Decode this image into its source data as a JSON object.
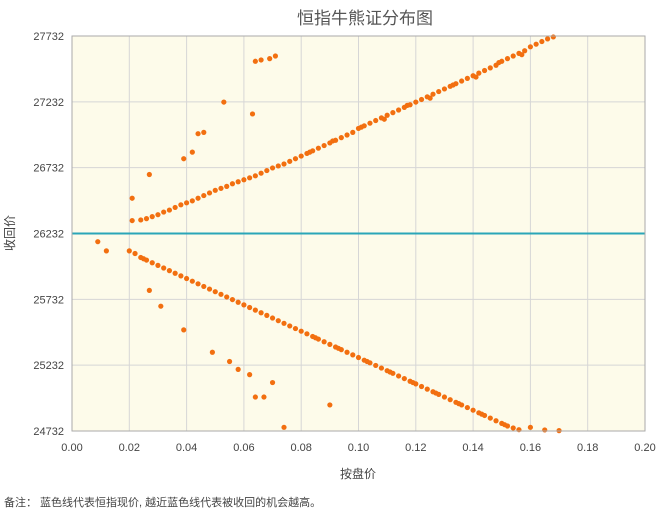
{
  "chart_data": {
    "type": "scatter",
    "title": "恒指牛熊证分布图",
    "xlabel": "按盘价",
    "ylabel": "收回价",
    "xlim": [
      0,
      0.2
    ],
    "ylim": [
      24732,
      27732
    ],
    "x_ticks": [
      "0.00",
      "0.02",
      "0.04",
      "0.06",
      "0.08",
      "0.10",
      "0.12",
      "0.14",
      "0.16",
      "0.18",
      "0.20"
    ],
    "y_ticks": [
      "24732",
      "25232",
      "25732",
      "26232",
      "26732",
      "27232",
      "27732"
    ],
    "grid": true,
    "reference_line": {
      "y": 26232,
      "color": "#2aa6b8"
    },
    "point_color": "#f26f10",
    "background_color": "#fdfbea",
    "series": [
      {
        "name": "",
        "points": [
          [
            0.021,
            26330
          ],
          [
            0.024,
            26335
          ],
          [
            0.026,
            26345
          ],
          [
            0.028,
            26360
          ],
          [
            0.03,
            26375
          ],
          [
            0.032,
            26395
          ],
          [
            0.034,
            26410
          ],
          [
            0.036,
            26430
          ],
          [
            0.038,
            26450
          ],
          [
            0.04,
            26465
          ],
          [
            0.042,
            26480
          ],
          [
            0.044,
            26500
          ],
          [
            0.046,
            26520
          ],
          [
            0.048,
            26540
          ],
          [
            0.05,
            26560
          ],
          [
            0.052,
            26575
          ],
          [
            0.054,
            26590
          ],
          [
            0.056,
            26610
          ],
          [
            0.058,
            26625
          ],
          [
            0.06,
            26640
          ],
          [
            0.062,
            26655
          ],
          [
            0.064,
            26670
          ],
          [
            0.066,
            26690
          ],
          [
            0.068,
            26710
          ],
          [
            0.07,
            26730
          ],
          [
            0.072,
            26745
          ],
          [
            0.074,
            26760
          ],
          [
            0.076,
            26780
          ],
          [
            0.078,
            26800
          ],
          [
            0.08,
            26820
          ],
          [
            0.082,
            26840
          ],
          [
            0.084,
            26860
          ],
          [
            0.086,
            26880
          ],
          [
            0.088,
            26900
          ],
          [
            0.09,
            26920
          ],
          [
            0.092,
            26940
          ],
          [
            0.094,
            26960
          ],
          [
            0.096,
            26980
          ],
          [
            0.098,
            27000
          ],
          [
            0.1,
            27030
          ],
          [
            0.102,
            27050
          ],
          [
            0.104,
            27070
          ],
          [
            0.106,
            27090
          ],
          [
            0.108,
            27110
          ],
          [
            0.11,
            27130
          ],
          [
            0.112,
            27150
          ],
          [
            0.114,
            27170
          ],
          [
            0.116,
            27190
          ],
          [
            0.118,
            27210
          ],
          [
            0.12,
            27230
          ],
          [
            0.122,
            27250
          ],
          [
            0.124,
            27270
          ],
          [
            0.126,
            27290
          ],
          [
            0.128,
            27310
          ],
          [
            0.13,
            27330
          ],
          [
            0.132,
            27350
          ],
          [
            0.134,
            27370
          ],
          [
            0.136,
            27390
          ],
          [
            0.138,
            27410
          ],
          [
            0.14,
            27430
          ],
          [
            0.142,
            27450
          ],
          [
            0.144,
            27470
          ],
          [
            0.146,
            27490
          ],
          [
            0.148,
            27510
          ],
          [
            0.15,
            27540
          ],
          [
            0.152,
            27560
          ],
          [
            0.154,
            27580
          ],
          [
            0.156,
            27600
          ],
          [
            0.158,
            27620
          ],
          [
            0.16,
            27650
          ],
          [
            0.162,
            27670
          ],
          [
            0.164,
            27690
          ],
          [
            0.166,
            27710
          ],
          [
            0.168,
            27725
          ],
          [
            0.083,
            26850
          ],
          [
            0.091,
            26935
          ],
          [
            0.101,
            27040
          ],
          [
            0.109,
            27100
          ],
          [
            0.117,
            27205
          ],
          [
            0.125,
            27260
          ],
          [
            0.133,
            27360
          ],
          [
            0.141,
            27420
          ],
          [
            0.149,
            27530
          ],
          [
            0.157,
            27590
          ],
          [
            0.021,
            26500
          ],
          [
            0.027,
            26680
          ],
          [
            0.039,
            26800
          ],
          [
            0.042,
            26850
          ],
          [
            0.044,
            26990
          ],
          [
            0.046,
            27000
          ],
          [
            0.053,
            27230
          ],
          [
            0.063,
            27140
          ],
          [
            0.064,
            27540
          ],
          [
            0.066,
            27550
          ],
          [
            0.069,
            27560
          ],
          [
            0.071,
            27580
          ],
          [
            0.02,
            26100
          ],
          [
            0.022,
            26080
          ],
          [
            0.024,
            26050
          ],
          [
            0.026,
            26030
          ],
          [
            0.028,
            26010
          ],
          [
            0.03,
            25990
          ],
          [
            0.032,
            25970
          ],
          [
            0.034,
            25950
          ],
          [
            0.036,
            25930
          ],
          [
            0.038,
            25910
          ],
          [
            0.04,
            25890
          ],
          [
            0.042,
            25870
          ],
          [
            0.044,
            25850
          ],
          [
            0.046,
            25830
          ],
          [
            0.048,
            25810
          ],
          [
            0.05,
            25790
          ],
          [
            0.052,
            25770
          ],
          [
            0.054,
            25750
          ],
          [
            0.056,
            25730
          ],
          [
            0.058,
            25710
          ],
          [
            0.06,
            25690
          ],
          [
            0.062,
            25670
          ],
          [
            0.064,
            25650
          ],
          [
            0.066,
            25630
          ],
          [
            0.068,
            25610
          ],
          [
            0.07,
            25590
          ],
          [
            0.072,
            25570
          ],
          [
            0.074,
            25550
          ],
          [
            0.076,
            25530
          ],
          [
            0.078,
            25510
          ],
          [
            0.08,
            25490
          ],
          [
            0.082,
            25470
          ],
          [
            0.084,
            25450
          ],
          [
            0.086,
            25430
          ],
          [
            0.088,
            25410
          ],
          [
            0.09,
            25390
          ],
          [
            0.092,
            25370
          ],
          [
            0.094,
            25350
          ],
          [
            0.096,
            25330
          ],
          [
            0.098,
            25310
          ],
          [
            0.1,
            25290
          ],
          [
            0.102,
            25270
          ],
          [
            0.104,
            25250
          ],
          [
            0.106,
            25230
          ],
          [
            0.108,
            25210
          ],
          [
            0.11,
            25190
          ],
          [
            0.112,
            25170
          ],
          [
            0.114,
            25150
          ],
          [
            0.116,
            25130
          ],
          [
            0.118,
            25110
          ],
          [
            0.12,
            25090
          ],
          [
            0.122,
            25070
          ],
          [
            0.124,
            25050
          ],
          [
            0.126,
            25030
          ],
          [
            0.128,
            25010
          ],
          [
            0.13,
            24990
          ],
          [
            0.132,
            24970
          ],
          [
            0.134,
            24950
          ],
          [
            0.136,
            24930
          ],
          [
            0.138,
            24910
          ],
          [
            0.14,
            24890
          ],
          [
            0.142,
            24870
          ],
          [
            0.144,
            24850
          ],
          [
            0.146,
            24830
          ],
          [
            0.148,
            24810
          ],
          [
            0.15,
            24790
          ],
          [
            0.152,
            24770
          ],
          [
            0.154,
            24755
          ],
          [
            0.156,
            24742
          ],
          [
            0.085,
            25440
          ],
          [
            0.093,
            25360
          ],
          [
            0.103,
            25260
          ],
          [
            0.111,
            25180
          ],
          [
            0.119,
            25100
          ],
          [
            0.127,
            25020
          ],
          [
            0.135,
            24940
          ],
          [
            0.143,
            24860
          ],
          [
            0.151,
            24780
          ],
          [
            0.16,
            24760
          ],
          [
            0.009,
            26170
          ],
          [
            0.012,
            26100
          ],
          [
            0.025,
            26040
          ],
          [
            0.027,
            25800
          ],
          [
            0.031,
            25680
          ],
          [
            0.039,
            25500
          ],
          [
            0.049,
            25330
          ],
          [
            0.055,
            25260
          ],
          [
            0.058,
            25200
          ],
          [
            0.062,
            25160
          ],
          [
            0.064,
            24990
          ],
          [
            0.067,
            24990
          ],
          [
            0.07,
            25100
          ],
          [
            0.074,
            24760
          ],
          [
            0.09,
            24930
          ],
          [
            0.165,
            24740
          ],
          [
            0.17,
            24735
          ]
        ]
      }
    ]
  },
  "footnote": "备注：  蓝色线代表恒指现价, 越近蓝色线代表被收回的机会越高。"
}
